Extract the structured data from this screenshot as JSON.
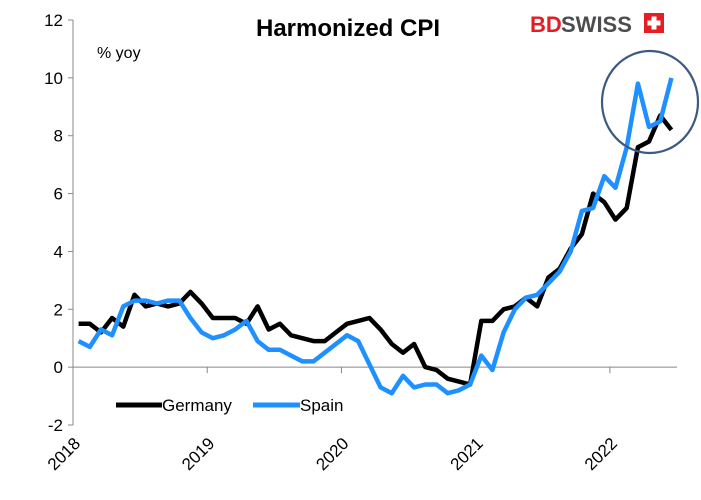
{
  "brand": {
    "logo_text_1": "BD",
    "logo_text_2": "SWISS",
    "color_red": "#e31e24",
    "color_dark": "#4d4d4f"
  },
  "chart_data": {
    "type": "line",
    "title": "Harmonized CPI",
    "ylabel": "% yoy",
    "xlabel": "",
    "ylim": [
      -2,
      12
    ],
    "yticks": [
      -2,
      0,
      2,
      4,
      6,
      8,
      10,
      12
    ],
    "xlim": [
      "2018-01",
      "2022-06"
    ],
    "xticks": [
      "2018",
      "2019",
      "2020",
      "2021",
      "2022"
    ],
    "legend": "bottom-left",
    "grid": false,
    "annotation": "circle around the latest readings (2022)",
    "x": [
      "2018-01",
      "2018-02",
      "2018-03",
      "2018-04",
      "2018-05",
      "2018-06",
      "2018-07",
      "2018-08",
      "2018-09",
      "2018-10",
      "2018-11",
      "2018-12",
      "2019-01",
      "2019-02",
      "2019-03",
      "2019-04",
      "2019-05",
      "2019-06",
      "2019-07",
      "2019-08",
      "2019-09",
      "2019-10",
      "2019-11",
      "2019-12",
      "2020-01",
      "2020-02",
      "2020-03",
      "2020-04",
      "2020-05",
      "2020-06",
      "2020-07",
      "2020-08",
      "2020-09",
      "2020-10",
      "2020-11",
      "2020-12",
      "2021-01",
      "2021-02",
      "2021-03",
      "2021-04",
      "2021-05",
      "2021-06",
      "2021-07",
      "2021-08",
      "2021-09",
      "2021-10",
      "2021-11",
      "2021-12",
      "2022-01",
      "2022-02",
      "2022-03",
      "2022-04",
      "2022-05",
      "2022-06"
    ],
    "series": [
      {
        "name": "Germany",
        "color": "#000000",
        "values": [
          1.5,
          1.5,
          1.2,
          1.7,
          1.4,
          2.5,
          2.1,
          2.2,
          2.1,
          2.2,
          2.6,
          2.2,
          1.7,
          1.7,
          1.7,
          1.5,
          2.1,
          1.3,
          1.5,
          1.1,
          1.0,
          0.9,
          0.9,
          1.2,
          1.5,
          1.6,
          1.7,
          1.3,
          0.8,
          0.5,
          0.8,
          0.0,
          -0.1,
          -0.4,
          -0.5,
          -0.6,
          1.6,
          1.6,
          2.0,
          2.1,
          2.4,
          2.1,
          3.1,
          3.4,
          4.1,
          4.6,
          6.0,
          5.7,
          5.1,
          5.5,
          7.6,
          7.8,
          8.7,
          8.2
        ]
      },
      {
        "name": "Spain",
        "color": "#1e90ff",
        "values": [
          0.9,
          0.7,
          1.3,
          1.1,
          2.1,
          2.3,
          2.3,
          2.2,
          2.3,
          2.3,
          1.7,
          1.2,
          1.0,
          1.1,
          1.3,
          1.6,
          0.9,
          0.6,
          0.6,
          0.4,
          0.2,
          0.2,
          0.5,
          0.8,
          1.1,
          0.9,
          0.1,
          -0.7,
          -0.9,
          -0.3,
          -0.7,
          -0.6,
          -0.6,
          -0.9,
          -0.8,
          -0.6,
          0.4,
          -0.1,
          1.2,
          2.0,
          2.4,
          2.5,
          2.9,
          3.3,
          4.0,
          5.4,
          5.5,
          6.6,
          6.2,
          7.6,
          9.8,
          8.3,
          8.5,
          10.0
        ]
      }
    ]
  }
}
